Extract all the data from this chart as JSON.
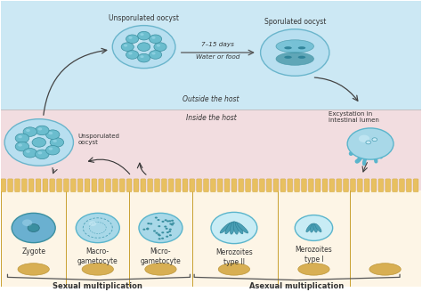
{
  "bg_top_color": "#cce8f4",
  "bg_bottom_color": "#f2dde0",
  "cell_bg": "#fdf5e6",
  "intestine_color": "#e8c060",
  "intestine_edge": "#c9a030",
  "teal_main": "#5ab5cc",
  "teal_dark": "#3a8fa0",
  "teal_light": "#a8d8e8",
  "teal_fill": "#7ec8d8",
  "teal_med": "#6bbdce",
  "blue_fill": "#6ab0d0",
  "blue_pale": "#b8dde8",
  "text_color": "#333333",
  "title_outside": "Outside the host",
  "title_inside": "Inside the host",
  "label_unsporulated": "Unsporulated oocyst",
  "label_sporulated": "Sporulated oocyst",
  "label_days": "7–15 days",
  "label_water": "Water or food",
  "label_excystation": "Excystation in\nintestinal lumen",
  "label_unsporulated2": "Unsporulated\noocyst",
  "label_zygote": "Zygote",
  "label_macro": "Macro-\ngametocyte",
  "label_micro": "Micro-\ngametocyte",
  "label_mero2": "Merozoites\ntype II",
  "label_mero1": "Merozoites\ntype I",
  "label_sexual": "Sexual multiplication",
  "label_asexual": "Asexual multiplication",
  "figsize": [
    4.74,
    3.28
  ],
  "dpi": 100
}
